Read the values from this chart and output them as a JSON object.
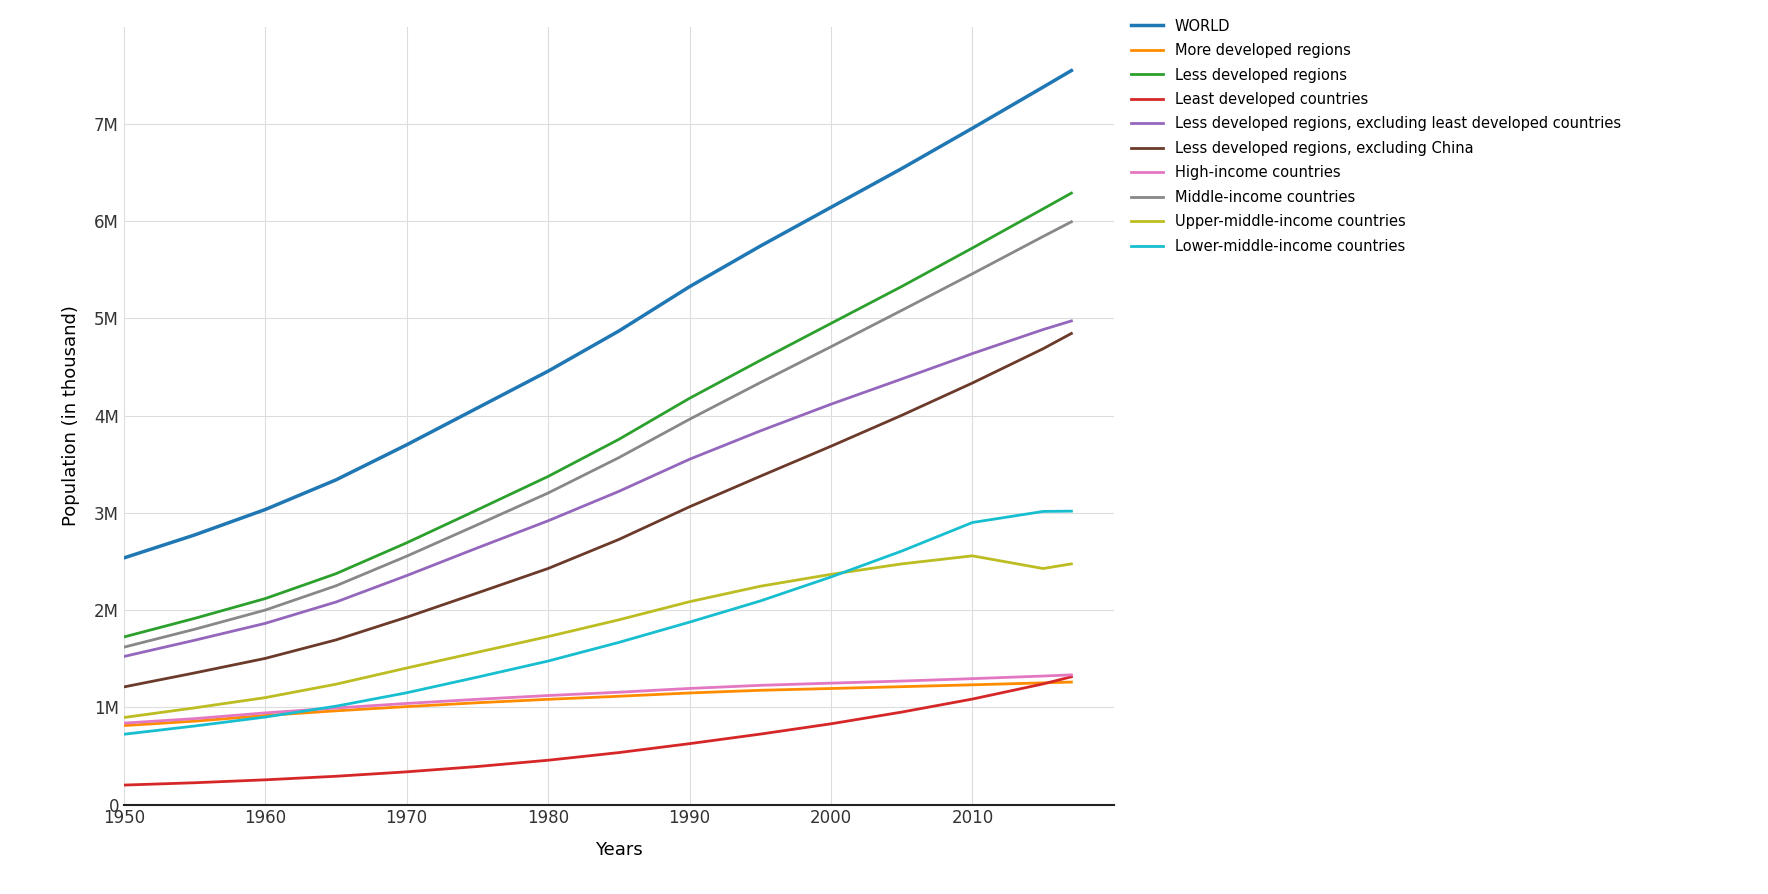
{
  "title": "",
  "xlabel": "Years",
  "ylabel": "Population (in thousand)",
  "years": [
    1950,
    1955,
    1960,
    1965,
    1970,
    1975,
    1980,
    1985,
    1990,
    1995,
    2000,
    2005,
    2010,
    2015,
    2017
  ],
  "series": [
    {
      "label": "WORLD",
      "color": "#1f77b4",
      "linewidth": 2.5,
      "values": [
        2536431,
        2773020,
        3034950,
        3339583,
        3700437,
        4079480,
        4458003,
        4870922,
        5327231,
        5744213,
        6143494,
        6541907,
        6956824,
        7379797,
        7550262
      ]
    },
    {
      "label": "More developed regions",
      "color": "#ff8c00",
      "linewidth": 2.0,
      "values": [
        812610,
        858155,
        915907,
        964703,
        1007934,
        1047516,
        1082763,
        1114413,
        1148192,
        1175694,
        1194247,
        1212827,
        1232085,
        1252163,
        1260588
      ]
    },
    {
      "label": "Less developed regions",
      "color": "#2ca02c",
      "linewidth": 2.0,
      "values": [
        1723821,
        1914865,
        2119043,
        2374880,
        2692503,
        3031964,
        3375240,
        3756509,
        4179039,
        4568519,
        4949247,
        5329080,
        5724739,
        6127634,
        6289674
      ]
    },
    {
      "label": "Least developed countries",
      "color": "#d62728",
      "linewidth": 2.0,
      "values": [
        200730,
        224682,
        254898,
        291476,
        337000,
        391640,
        456279,
        534990,
        626821,
        725059,
        831052,
        951533,
        1085518,
        1241369,
        1314610
      ]
    },
    {
      "label": "Less developed regions, excluding least developed countries",
      "color": "#9467bd",
      "linewidth": 2.0,
      "values": [
        1523091,
        1690183,
        1864145,
        2083404,
        2355503,
        2640324,
        2918961,
        3221519,
        3552218,
        3843460,
        4118195,
        4377547,
        4639221,
        4886265,
        4975064
      ]
    },
    {
      "label": "Less developed regions, excluding China",
      "color": "#6b3a2a",
      "linewidth": 2.0,
      "values": [
        1210059,
        1354040,
        1503685,
        1693817,
        1927481,
        2176684,
        2428375,
        2726867,
        3063012,
        3377049,
        3685920,
        4003843,
        4336268,
        4688979,
        4846070
      ]
    },
    {
      "label": "High-income countries",
      "color": "#e377c2",
      "linewidth": 2.0,
      "values": [
        838063,
        883959,
        943274,
        993630,
        1040427,
        1083024,
        1121803,
        1155867,
        1194878,
        1226756,
        1249378,
        1270745,
        1295527,
        1322344,
        1334408
      ]
    },
    {
      "label": "Middle-income countries",
      "color": "#888888",
      "linewidth": 2.0,
      "values": [
        1618831,
        1803007,
        2000600,
        2250438,
        2555003,
        2877888,
        3204620,
        3568455,
        3963451,
        4340244,
        4709408,
        5083258,
        5460009,
        5843671,
        5994688
      ]
    },
    {
      "label": "Upper-middle-income countries",
      "color": "#bcbd22",
      "linewidth": 2.0,
      "values": [
        895506,
        994823,
        1100296,
        1238282,
        1404791,
        1566897,
        1728178,
        1900337,
        2086781,
        2245946,
        2368261,
        2475773,
        2558613,
        2428248,
        2476047
      ]
    },
    {
      "label": "Lower-middle-income countries",
      "color": "#17becf",
      "linewidth": 2.0,
      "values": [
        723325,
        808184,
        900304,
        1012156,
        1150212,
        1310991,
        1476442,
        1668118,
        1876670,
        2094298,
        2341147,
        2607485,
        2901396,
        3015423,
        3018641
      ]
    }
  ],
  "xlim": [
    1950,
    2020
  ],
  "ylim": [
    0,
    8000000
  ],
  "xticks": [
    1950,
    1960,
    1970,
    1980,
    1990,
    2000,
    2010
  ],
  "yticks": [
    0,
    1000000,
    2000000,
    3000000,
    4000000,
    5000000,
    6000000,
    7000000
  ],
  "ytick_labels": [
    "0",
    "1M",
    "2M",
    "3M",
    "4M",
    "5M",
    "6M",
    "7M"
  ],
  "background_color": "#ffffff",
  "grid_color": "#dddddd",
  "legend_fontsize": 10.5,
  "axis_fontsize": 13,
  "tick_fontsize": 12
}
